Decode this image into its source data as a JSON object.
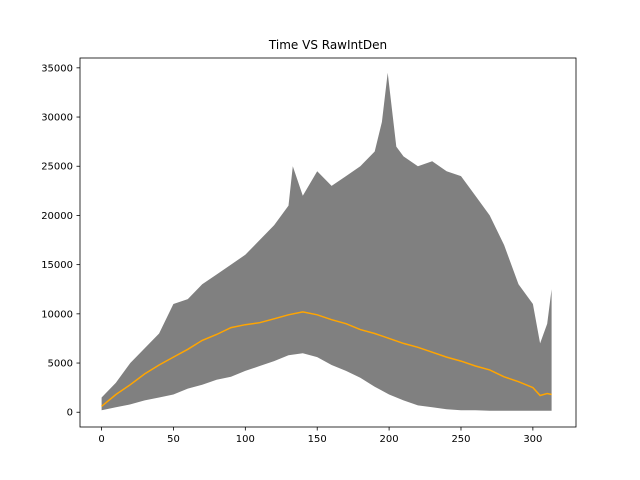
{
  "chart_data": {
    "type": "area",
    "title": "Time VS RawIntDen",
    "xlabel": "",
    "ylabel": "",
    "xlim": [
      -15,
      330
    ],
    "ylim": [
      -1500,
      36000
    ],
    "x_ticks": [
      0,
      50,
      100,
      150,
      200,
      250,
      300
    ],
    "y_ticks": [
      0,
      5000,
      10000,
      15000,
      20000,
      25000,
      30000,
      35000
    ],
    "x_tick_labels": [
      "0",
      "50",
      "100",
      "150",
      "200",
      "250",
      "300"
    ],
    "y_tick_labels": [
      "0",
      "5000",
      "10000",
      "15000",
      "20000",
      "25000",
      "30000",
      "35000"
    ],
    "grid": false,
    "colors": {
      "band": "#808080",
      "mean_line": "#ffa500",
      "axis": "#000000",
      "background": "#ffffff"
    },
    "series": [
      {
        "role": "upper-envelope",
        "x": [
          0,
          10,
          20,
          30,
          40,
          50,
          60,
          70,
          80,
          90,
          100,
          110,
          120,
          130,
          133,
          140,
          150,
          160,
          170,
          180,
          190,
          195,
          199,
          205,
          210,
          220,
          230,
          240,
          250,
          260,
          270,
          280,
          290,
          300,
          305,
          310,
          313
        ],
        "y": [
          1500,
          3000,
          5000,
          6500,
          8000,
          11000,
          11500,
          13000,
          14000,
          15000,
          16000,
          17500,
          19000,
          21000,
          25000,
          22000,
          24500,
          23000,
          24000,
          25000,
          26500,
          29500,
          34500,
          27000,
          26000,
          25000,
          25500,
          24500,
          24000,
          22000,
          20000,
          17000,
          13000,
          11000,
          7000,
          9000,
          12500
        ]
      },
      {
        "role": "lower-envelope",
        "x": [
          0,
          10,
          20,
          30,
          40,
          50,
          60,
          70,
          80,
          90,
          100,
          110,
          120,
          130,
          140,
          150,
          160,
          170,
          180,
          190,
          200,
          210,
          220,
          230,
          240,
          250,
          260,
          270,
          280,
          290,
          300,
          310,
          313
        ],
        "y": [
          200,
          500,
          800,
          1200,
          1500,
          1800,
          2400,
          2800,
          3300,
          3600,
          4200,
          4700,
          5200,
          5800,
          6000,
          5600,
          4800,
          4200,
          3500,
          2600,
          1800,
          1200,
          700,
          500,
          300,
          200,
          200,
          150,
          150,
          150,
          150,
          150,
          150
        ]
      },
      {
        "role": "mean",
        "x": [
          0,
          10,
          20,
          30,
          40,
          50,
          60,
          70,
          80,
          90,
          100,
          110,
          120,
          130,
          140,
          150,
          160,
          170,
          180,
          190,
          200,
          210,
          220,
          230,
          240,
          250,
          260,
          270,
          280,
          290,
          300,
          305,
          310,
          313
        ],
        "y": [
          600,
          1800,
          2800,
          3900,
          4800,
          5600,
          6400,
          7300,
          7900,
          8600,
          8900,
          9100,
          9500,
          9900,
          10200,
          9900,
          9400,
          9000,
          8400,
          8000,
          7500,
          7000,
          6600,
          6100,
          5600,
          5200,
          4700,
          4300,
          3600,
          3100,
          2500,
          1700,
          1900,
          1800
        ]
      }
    ]
  }
}
